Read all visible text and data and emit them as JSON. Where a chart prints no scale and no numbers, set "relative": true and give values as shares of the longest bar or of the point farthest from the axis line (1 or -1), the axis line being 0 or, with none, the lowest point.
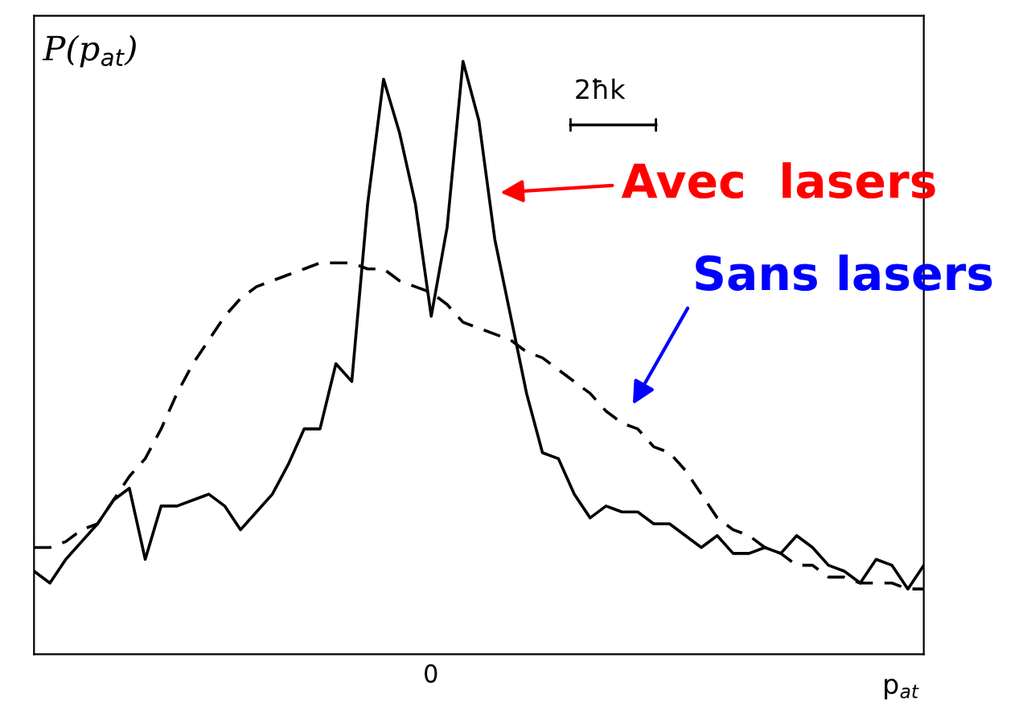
{
  "chart_data": {
    "type": "line",
    "relative": true,
    "ylabel": "P(p$_{at}$)",
    "xlabel": "p$_{at}$",
    "marker": "none",
    "categories": [
      null,
      null,
      null,
      null,
      null,
      null,
      null,
      null,
      null,
      null,
      null,
      null,
      null,
      null,
      null,
      null,
      null,
      null,
      null,
      null,
      null,
      null,
      null,
      null,
      null,
      null,
      null,
      null,
      null,
      null,
      null,
      null,
      null,
      null,
      null,
      null,
      null,
      null,
      null,
      null,
      null,
      null,
      null,
      null,
      null,
      null,
      null,
      null,
      null,
      null,
      null,
      null,
      null,
      null,
      null,
      null,
      null
    ],
    "annotations": [
      "2ħk",
      "Avec  lasers",
      "Sans lasers",
      "0"
    ],
    "series": [
      {
        "color": "#000000",
        "line_style": "solid",
        "values": [
          0.14,
          0.12,
          0.16,
          0.19,
          0.22,
          0.26,
          0.28,
          0.16,
          0.25,
          0.25,
          0.26,
          0.27,
          0.25,
          0.21,
          0.24,
          0.27,
          0.32,
          0.38,
          0.38,
          0.49,
          0.46,
          0.76,
          0.97,
          0.88,
          0.76,
          0.57,
          0.72,
          1.0,
          0.9,
          0.7,
          0.57,
          0.44,
          0.34,
          0.33,
          0.27,
          0.23,
          0.25,
          0.24,
          0.24,
          0.22,
          0.22,
          0.2,
          0.18,
          0.2,
          0.17,
          0.17,
          0.18,
          0.17,
          0.2,
          0.18,
          0.15,
          0.14,
          0.12,
          0.16,
          0.15,
          0.11,
          0.15
        ]
      },
      {
        "color": "#000000",
        "line_style": "dashed",
        "values": [
          0.18,
          0.18,
          0.19,
          0.21,
          0.22,
          0.26,
          0.3,
          0.33,
          0.38,
          0.44,
          0.49,
          0.53,
          0.57,
          0.6,
          0.62,
          0.63,
          0.64,
          0.65,
          0.66,
          0.66,
          0.66,
          0.65,
          0.65,
          0.63,
          0.62,
          0.61,
          0.59,
          0.56,
          0.55,
          0.54,
          0.53,
          0.51,
          0.5,
          0.48,
          0.46,
          0.44,
          0.41,
          0.39,
          0.38,
          0.35,
          0.34,
          0.31,
          0.27,
          0.23,
          0.21,
          0.2,
          0.18,
          0.17,
          0.15,
          0.15,
          0.13,
          0.13,
          0.12,
          0.12,
          0.12,
          0.11,
          0.11
        ]
      }
    ]
  }
}
